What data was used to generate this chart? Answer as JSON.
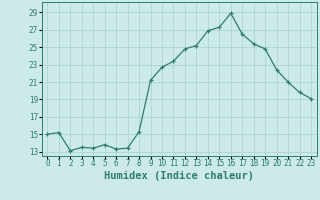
{
  "x": [
    0,
    1,
    2,
    3,
    4,
    5,
    6,
    7,
    8,
    9,
    10,
    11,
    12,
    13,
    14,
    15,
    16,
    17,
    18,
    19,
    20,
    21,
    22,
    23
  ],
  "y": [
    15,
    15.2,
    13.1,
    13.5,
    13.4,
    13.8,
    13.3,
    13.4,
    15.3,
    21.2,
    22.7,
    23.4,
    24.8,
    25.2,
    26.9,
    27.3,
    28.9,
    26.5,
    25.4,
    24.8,
    22.4,
    21.0,
    19.8,
    19.1
  ],
  "title": "",
  "xlabel": "Humidex (Indice chaleur)",
  "ylabel": "",
  "xlim": [
    -0.5,
    23.5
  ],
  "ylim": [
    12.5,
    30.2
  ],
  "yticks": [
    13,
    15,
    17,
    19,
    21,
    23,
    25,
    27,
    29
  ],
  "xticks": [
    0,
    1,
    2,
    3,
    4,
    5,
    6,
    7,
    8,
    9,
    10,
    11,
    12,
    13,
    14,
    15,
    16,
    17,
    18,
    19,
    20,
    21,
    22,
    23
  ],
  "line_color": "#2e7d6e",
  "marker": "+",
  "bg_color": "#cceae8",
  "grid_color": "#b0d4d0",
  "xlabel_fontsize": 7.5,
  "tick_fontsize": 5.5
}
